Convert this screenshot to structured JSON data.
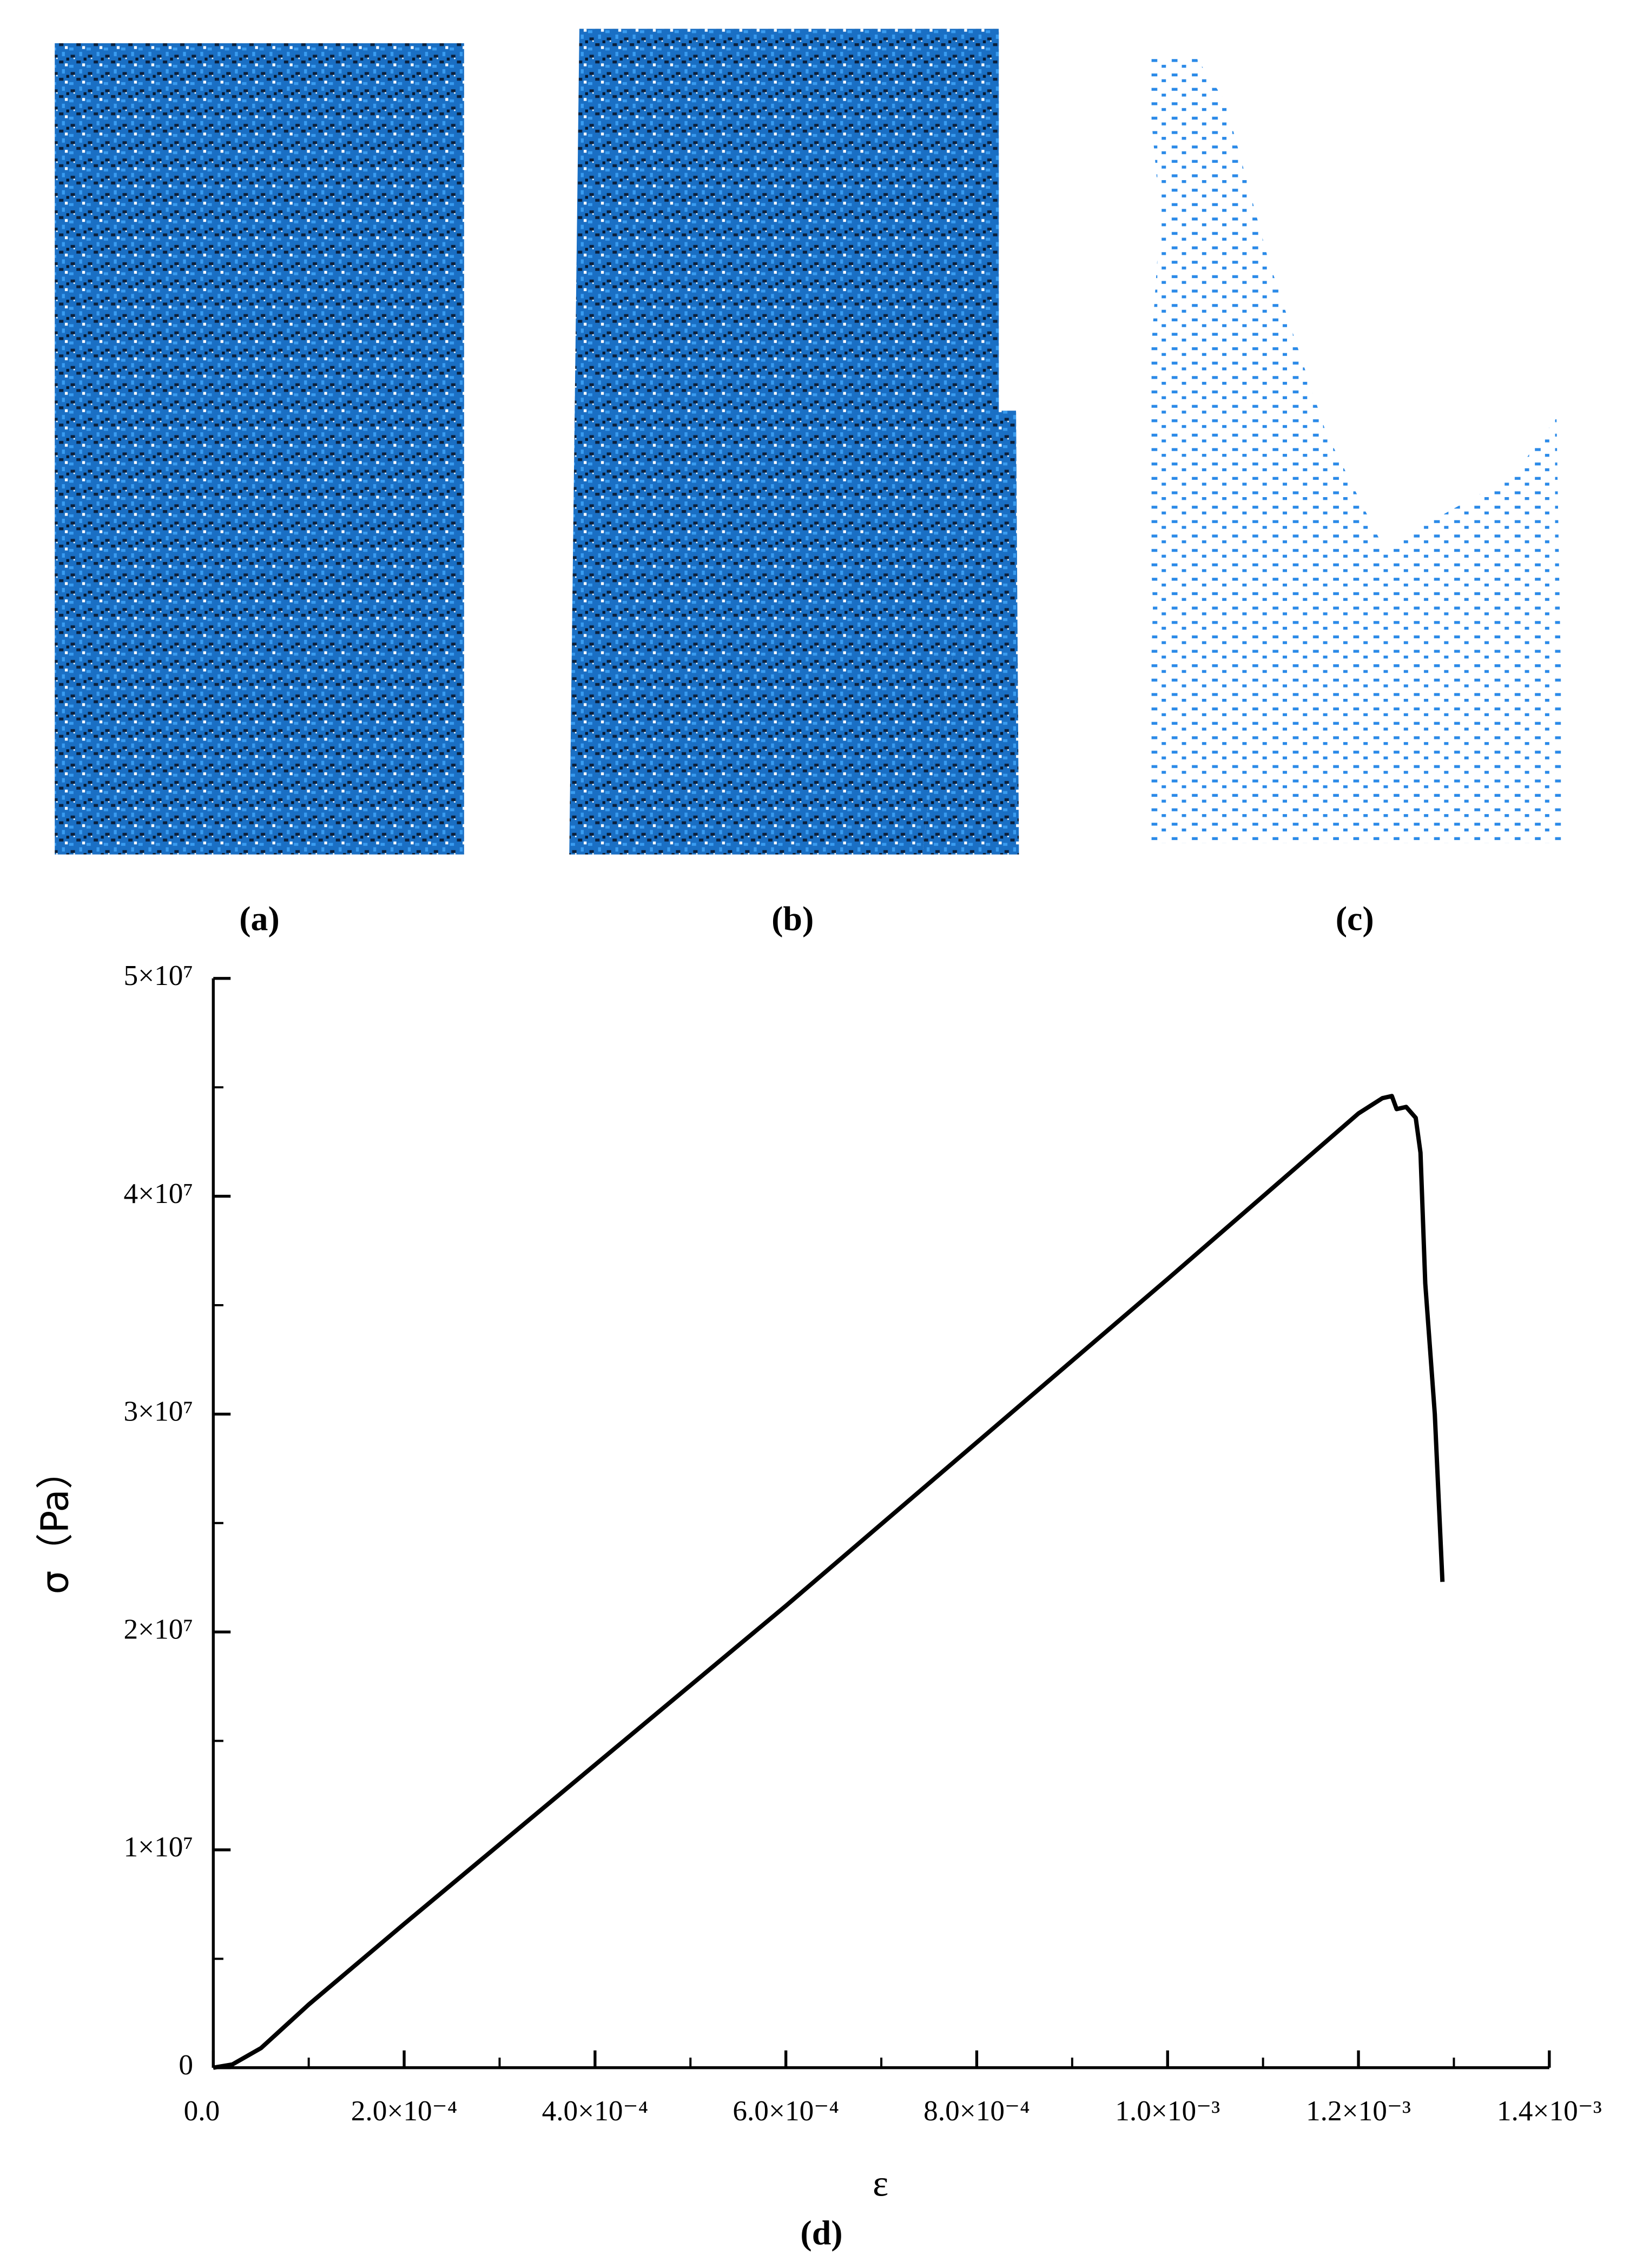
{
  "panel_labels": [
    "(a)",
    "(b)",
    "(c)"
  ],
  "chart_data": {
    "type": "line",
    "caption": "(d)",
    "xlabel": "ε",
    "ylabel": "σ（Pa）",
    "color": "#000000",
    "x": [
      0,
      2e-05,
      5e-05,
      0.0001,
      0.0002,
      0.0004,
      0.0006,
      0.0008,
      0.001,
      0.0011,
      0.0012,
      0.001225,
      0.001235,
      0.00124,
      0.00125,
      0.00126,
      0.001265,
      0.00127,
      0.00128,
      0.001288
    ],
    "values": [
      0,
      150000,
      900000,
      2900000,
      6600000,
      13900000,
      21200000,
      28700000,
      36200000,
      40000000,
      43800000,
      44500000,
      44600000,
      44000000,
      44100000,
      43600000,
      42000000,
      36000000,
      30000000,
      22300000
    ],
    "xlim": [
      0,
      0.0014
    ],
    "ylim": [
      0,
      50000000
    ],
    "xticks": [
      {
        "value": 0,
        "label": "0.0"
      },
      {
        "value": 0.0002,
        "label": "2.0×10⁻⁴"
      },
      {
        "value": 0.0004,
        "label": "4.0×10⁻⁴"
      },
      {
        "value": 0.0006,
        "label": "6.0×10⁻⁴"
      },
      {
        "value": 0.0008,
        "label": "8.0×10⁻⁴"
      },
      {
        "value": 0.001,
        "label": "1.0×10⁻³"
      },
      {
        "value": 0.0012,
        "label": "1.2×10⁻³"
      },
      {
        "value": 0.0014,
        "label": "1.4×10⁻³"
      }
    ],
    "yticks": [
      0,
      {
        "value": 10000000,
        "label": "1×10⁷"
      },
      {
        "value": 20000000,
        "label": "2×10⁷"
      },
      {
        "value": 30000000,
        "label": "3×10⁷"
      },
      {
        "value": 40000000,
        "label": "4×10⁷"
      },
      {
        "value": 50000000,
        "label": "5×10⁷"
      }
    ],
    "xminorticks": [
      0.0001,
      0.0003,
      0.0005,
      0.0007,
      0.0009,
      0.0011,
      0.0013
    ],
    "yminorticks": [
      5000000,
      15000000,
      25000000,
      35000000,
      45000000
    ]
  }
}
